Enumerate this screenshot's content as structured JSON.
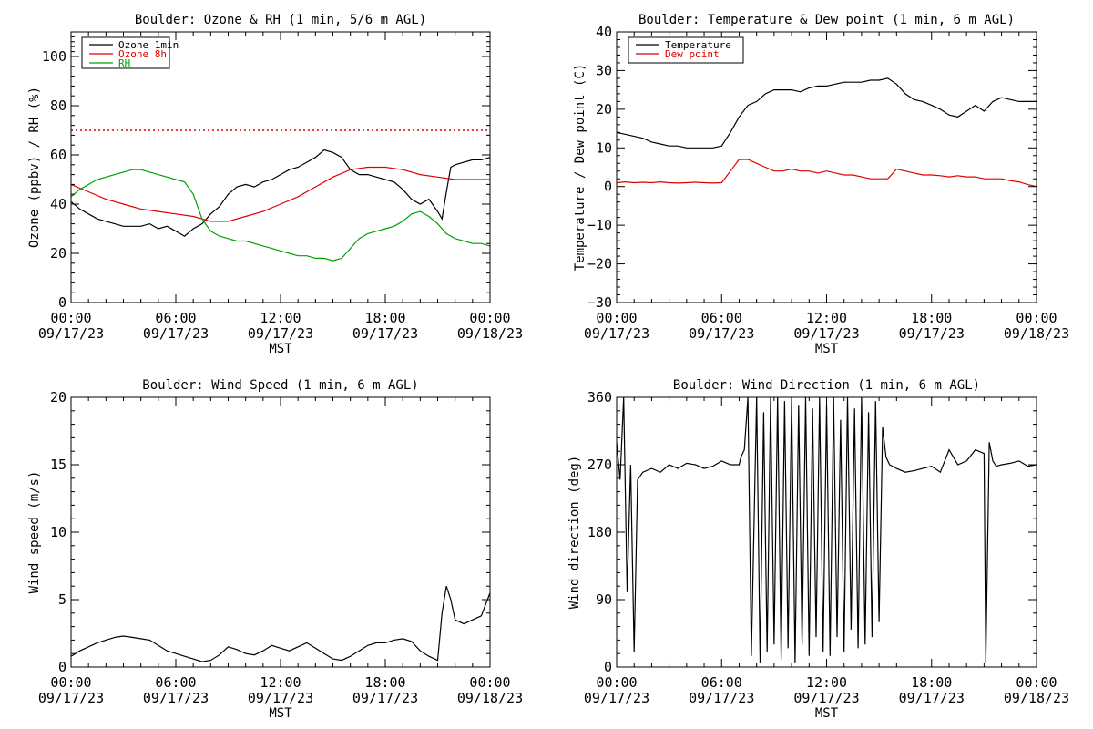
{
  "colors": {
    "ozone_1min": "#000000",
    "ozone_8h": "#dd0000",
    "rh": "#00a000",
    "temperature": "#000000",
    "dew_point": "#dd0000",
    "wind": "#000000",
    "standard_line": "#dd0000"
  },
  "x_ticks": [
    {
      "time": "00:00",
      "date": "09/17/23"
    },
    {
      "time": "06:00",
      "date": "09/17/23"
    },
    {
      "time": "12:00",
      "date": "09/17/23"
    },
    {
      "time": "18:00",
      "date": "09/17/23"
    },
    {
      "time": "00:00",
      "date": "09/18/23"
    }
  ],
  "chart_data": [
    {
      "type": "line",
      "title": "Boulder: Ozone & RH (1 min, 5/6 m AGL)",
      "xlabel": "MST",
      "ylabel": "Ozone (ppbv) / RH (%)",
      "xlim": [
        "09/17/23 00:00",
        "09/18/23 00:00"
      ],
      "ylim": [
        0,
        110
      ],
      "yticks": [
        "0",
        "20",
        "40",
        "60",
        "80",
        "100"
      ],
      "reference_line": {
        "y": 70,
        "style": "dotted"
      },
      "legend_position": "top-left",
      "series": [
        {
          "name": "Ozone 1min",
          "x_hours": [
            0,
            0.5,
            1,
            1.5,
            2,
            2.5,
            3,
            3.5,
            4,
            4.5,
            5,
            5.5,
            6,
            6.5,
            7,
            7.5,
            8,
            8.5,
            9,
            9.5,
            10,
            10.5,
            11,
            11.5,
            12,
            12.5,
            13,
            13.5,
            14,
            14.5,
            15,
            15.5,
            16,
            16.5,
            17,
            17.5,
            18,
            18.5,
            19,
            19.5,
            20,
            20.5,
            21,
            21.25,
            21.5,
            21.75,
            22,
            22.5,
            23,
            23.5,
            24
          ],
          "values": [
            41,
            38,
            36,
            34,
            33,
            32,
            31,
            31,
            31,
            32,
            30,
            31,
            29,
            27,
            30,
            32,
            36,
            39,
            44,
            47,
            48,
            47,
            49,
            50,
            52,
            54,
            55,
            57,
            59,
            62,
            61,
            59,
            54,
            52,
            52,
            51,
            50,
            49,
            46,
            42,
            40,
            42,
            37,
            34,
            45,
            55,
            56,
            57,
            58,
            58,
            59
          ]
        },
        {
          "name": "Ozone 8h",
          "x_hours": [
            0,
            1,
            2,
            3,
            4,
            5,
            6,
            7,
            8,
            9,
            10,
            11,
            12,
            13,
            14,
            15,
            16,
            17,
            18,
            19,
            20,
            21,
            22,
            23,
            24
          ],
          "values": [
            48,
            45,
            42,
            40,
            38,
            37,
            36,
            35,
            33,
            33,
            35,
            37,
            40,
            43,
            47,
            51,
            54,
            55,
            55,
            54,
            52,
            51,
            50,
            50,
            50
          ]
        },
        {
          "name": "RH",
          "x_hours": [
            0,
            0.5,
            1,
            1.5,
            2,
            2.5,
            3,
            3.5,
            4,
            4.5,
            5,
            5.5,
            6,
            6.5,
            7,
            7.5,
            8,
            8.5,
            9,
            9.5,
            10,
            10.5,
            11,
            11.5,
            12,
            12.5,
            13,
            13.5,
            14,
            14.5,
            15,
            15.5,
            16,
            16.5,
            17,
            17.5,
            18,
            18.5,
            19,
            19.5,
            20,
            20.5,
            21,
            21.5,
            22,
            22.5,
            23,
            23.5,
            24
          ],
          "values": [
            43,
            46,
            48,
            50,
            51,
            52,
            53,
            54,
            54,
            53,
            52,
            51,
            50,
            49,
            44,
            34,
            29,
            27,
            26,
            25,
            25,
            24,
            23,
            22,
            21,
            20,
            19,
            19,
            18,
            18,
            17,
            18,
            22,
            26,
            28,
            29,
            30,
            31,
            33,
            36,
            37,
            35,
            32,
            28,
            26,
            25,
            24,
            24,
            23
          ]
        }
      ]
    },
    {
      "type": "line",
      "title": "Boulder: Temperature & Dew point (1 min, 6 m AGL)",
      "xlabel": "MST",
      "ylabel": "Temperature / Dew point (C)",
      "xlim": [
        "09/17/23 00:00",
        "09/18/23 00:00"
      ],
      "ylim": [
        -30,
        40
      ],
      "yticks": [
        "−30",
        "−20",
        "−10",
        "0",
        "10",
        "20",
        "30",
        "40"
      ],
      "legend_position": "top-left",
      "series": [
        {
          "name": "Temperature",
          "x_hours": [
            0,
            0.5,
            1,
            1.5,
            2,
            2.5,
            3,
            3.5,
            4,
            4.5,
            5,
            5.5,
            6,
            6.5,
            7,
            7.5,
            8,
            8.5,
            9,
            9.5,
            10,
            10.5,
            11,
            11.5,
            12,
            12.5,
            13,
            13.5,
            14,
            14.5,
            15,
            15.5,
            16,
            16.5,
            17,
            17.5,
            18,
            18.5,
            19,
            19.5,
            20,
            20.5,
            21,
            21.5,
            22,
            22.5,
            23,
            23.5,
            24
          ],
          "values": [
            14,
            13.5,
            13,
            12.5,
            11.5,
            11,
            10.5,
            10.5,
            10,
            10,
            10,
            10,
            10.5,
            14,
            18,
            21,
            22,
            24,
            25,
            25,
            25,
            24.5,
            25.5,
            26,
            26,
            26.5,
            27,
            27,
            27,
            27.5,
            27.5,
            28,
            26.5,
            24,
            22.5,
            22,
            21,
            20,
            18.5,
            18,
            19.5,
            21,
            19.5,
            22,
            23,
            22.5,
            22,
            22,
            22
          ]
        },
        {
          "name": "Dew point",
          "x_hours": [
            0,
            0.5,
            1,
            1.5,
            2,
            2.5,
            3,
            3.5,
            4,
            4.5,
            5,
            5.5,
            6,
            6.5,
            7,
            7.5,
            8,
            8.5,
            9,
            9.5,
            10,
            10.5,
            11,
            11.5,
            12,
            12.5,
            13,
            13.5,
            14,
            14.5,
            15,
            15.5,
            16,
            16.5,
            17,
            17.5,
            18,
            18.5,
            19,
            19.5,
            20,
            20.5,
            21,
            21.5,
            22,
            22.5,
            23,
            23.5,
            24
          ],
          "values": [
            1,
            1.2,
            1,
            1.1,
            1,
            1.2,
            1,
            0.9,
            1,
            1.1,
            1,
            0.9,
            1,
            4,
            7,
            7,
            6,
            5,
            4,
            4,
            4.5,
            4,
            4,
            3.5,
            4,
            3.5,
            3,
            3,
            2.5,
            2,
            2,
            2,
            4.5,
            4,
            3.5,
            3,
            3,
            2.8,
            2.5,
            2.8,
            2.5,
            2.5,
            2,
            2,
            2,
            1.5,
            1.2,
            0.5,
            0
          ]
        }
      ]
    },
    {
      "type": "line",
      "title": "Boulder: Wind Speed (1 min, 6 m AGL)",
      "xlabel": "MST",
      "ylabel": "Wind speed (m/s)",
      "xlim": [
        "09/17/23 00:00",
        "09/18/23 00:00"
      ],
      "ylim": [
        0,
        20
      ],
      "yticks": [
        "0",
        "5",
        "10",
        "15",
        "20"
      ],
      "series": [
        {
          "name": "Wind speed",
          "x_hours": [
            0,
            0.5,
            1,
            1.5,
            2,
            2.5,
            3,
            3.5,
            4,
            4.5,
            5,
            5.5,
            6,
            6.5,
            7,
            7.5,
            8,
            8.5,
            9,
            9.5,
            10,
            10.5,
            11,
            11.5,
            12,
            12.5,
            13,
            13.5,
            14,
            14.5,
            15,
            15.5,
            16,
            16.5,
            17,
            17.5,
            18,
            18.5,
            19,
            19.5,
            20,
            20.5,
            21,
            21.25,
            21.5,
            21.75,
            22,
            22.5,
            23,
            23.5,
            24
          ],
          "values": [
            0.8,
            1.2,
            1.5,
            1.8,
            2.0,
            2.2,
            2.3,
            2.2,
            2.1,
            2.0,
            1.6,
            1.2,
            1.0,
            0.8,
            0.6,
            0.4,
            0.5,
            0.9,
            1.5,
            1.3,
            1.0,
            0.9,
            1.2,
            1.6,
            1.4,
            1.2,
            1.5,
            1.8,
            1.4,
            1.0,
            0.6,
            0.5,
            0.8,
            1.2,
            1.6,
            1.8,
            1.8,
            2.0,
            2.1,
            1.9,
            1.2,
            0.8,
            0.5,
            4.0,
            6.0,
            5.0,
            3.5,
            3.2,
            3.5,
            3.8,
            5.5
          ]
        }
      ]
    },
    {
      "type": "line",
      "title": "Boulder: Wind Direction (1 min, 6 m AGL)",
      "xlabel": "MST",
      "ylabel": "Wind direction (deg)",
      "xlim": [
        "09/17/23 00:00",
        "09/18/23 00:00"
      ],
      "ylim": [
        0,
        360
      ],
      "yticks": [
        "0",
        "90",
        "180",
        "270",
        "360"
      ],
      "series": [
        {
          "name": "Wind direction",
          "x_hours": [
            0,
            0.2,
            0.4,
            0.6,
            0.8,
            1,
            1.2,
            1.5,
            2,
            2.5,
            3,
            3.5,
            4,
            4.5,
            5,
            5.5,
            6,
            6.5,
            7,
            7.1,
            7.3,
            7.5,
            7.7,
            8,
            8.2,
            8.4,
            8.6,
            8.8,
            9,
            9.2,
            9.4,
            9.6,
            9.8,
            10,
            10.2,
            10.4,
            10.6,
            10.8,
            11,
            11.2,
            11.4,
            11.6,
            11.8,
            12,
            12.2,
            12.4,
            12.6,
            12.8,
            13,
            13.2,
            13.4,
            13.6,
            13.8,
            14,
            14.2,
            14.4,
            14.6,
            14.8,
            15,
            15.2,
            15.4,
            15.6,
            16,
            16.5,
            17,
            17.5,
            18,
            18.5,
            19,
            19.5,
            20,
            20.5,
            21,
            21.1,
            21.3,
            21.5,
            21.7,
            22,
            22.5,
            23,
            23.5,
            24
          ],
          "values": [
            300,
            250,
            360,
            100,
            270,
            20,
            250,
            260,
            265,
            260,
            270,
            265,
            272,
            270,
            265,
            268,
            275,
            270,
            270,
            280,
            290,
            360,
            15,
            360,
            5,
            340,
            20,
            360,
            30,
            360,
            10,
            355,
            25,
            360,
            5,
            350,
            30,
            360,
            15,
            345,
            40,
            360,
            20,
            350,
            15,
            360,
            40,
            330,
            20,
            360,
            50,
            345,
            25,
            360,
            30,
            340,
            40,
            355,
            60,
            320,
            280,
            270,
            265,
            260,
            262,
            265,
            268,
            260,
            290,
            270,
            275,
            290,
            285,
            5,
            300,
            275,
            268,
            270,
            272,
            275,
            268,
            270
          ]
        }
      ]
    }
  ]
}
